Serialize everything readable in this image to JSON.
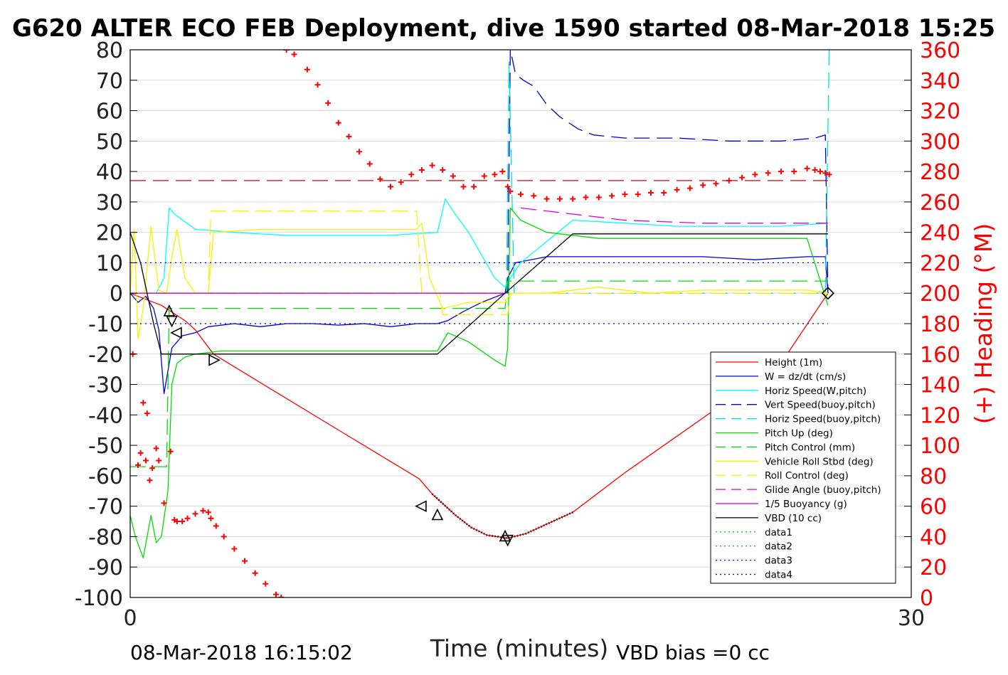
{
  "chart_data": {
    "type": "line",
    "title": "G620 ALTER ECO FEB Deployment, dive 1590 started 08-Mar-2018 15:25",
    "xlabel": "Time (minutes)",
    "ylabel_right": "(+) Heading (°M)",
    "xlim": [
      0,
      30
    ],
    "ylim": [
      -100,
      80
    ],
    "ylim_right": [
      0,
      360
    ],
    "x_ticks": [
      0,
      30
    ],
    "y_ticks": [
      80,
      70,
      60,
      50,
      40,
      30,
      20,
      10,
      0,
      -10,
      -20,
      -30,
      -40,
      -50,
      -60,
      -70,
      -80,
      -90,
      -100
    ],
    "y_ticks_right": [
      360,
      340,
      320,
      300,
      280,
      260,
      240,
      220,
      200,
      180,
      160,
      140,
      120,
      100,
      80,
      60,
      40,
      20,
      0
    ],
    "footer_left": "08-Mar-2018 16:15:02",
    "footer_right": "VBD bias =0 cc",
    "legend_position": "lower-right",
    "grid": "horizontal",
    "series": [
      {
        "name": "Height (1m)",
        "style": "solid",
        "color": "#ff0000",
        "x": [
          0,
          1.2,
          2.1,
          2.5,
          3.2,
          5.5,
          8.2,
          11.1,
          11.6,
          12.5,
          13.1,
          13.7,
          14.5,
          15.2,
          17,
          19,
          21,
          23,
          25,
          26.8
        ],
        "y": [
          0,
          -4,
          -9,
          -12,
          -20,
          -32,
          -46,
          -61,
          -66,
          -73,
          -77,
          -79.5,
          -80.5,
          -79,
          -72,
          -59,
          -47,
          -35,
          -23,
          0
        ]
      },
      {
        "name": "W = dz/dt (cm/s)",
        "style": "solid",
        "color": "#0000cc",
        "x": [
          0,
          0.3,
          0.6,
          0.9,
          1.1,
          1.3,
          1.6,
          2,
          2.5,
          3,
          4,
          5,
          6,
          7,
          8,
          9,
          10,
          11,
          11.8,
          12.2,
          12.8,
          13.5,
          14.4,
          14.5,
          14.8,
          16,
          18,
          20,
          22,
          24,
          26,
          26.7,
          26.8
        ],
        "y": [
          0,
          -3,
          -1,
          -5,
          -12,
          -33,
          -18,
          -14,
          -13,
          -11,
          -10,
          -11,
          -10,
          -10,
          -10.5,
          -10,
          -11,
          -10,
          -10,
          -9,
          -6,
          -3,
          0,
          5,
          10,
          12,
          12,
          12,
          12,
          11,
          12,
          12,
          0
        ]
      },
      {
        "name": "Horiz Speed(W,pitch)",
        "style": "solid",
        "color": "#00ffff",
        "x": [
          0,
          0.5,
          1,
          1.3,
          1.5,
          1.7,
          2.5,
          4,
          6,
          8,
          10,
          11.8,
          12.1,
          12.4,
          13,
          14,
          14.4,
          14.6,
          15,
          17,
          19,
          21,
          23,
          25,
          26.8
        ],
        "y": [
          0,
          0,
          0,
          5,
          28,
          26,
          21,
          20,
          19,
          19,
          19,
          20,
          31,
          27,
          20,
          5,
          2,
          5,
          10,
          24,
          23,
          22,
          22,
          22,
          23
        ]
      },
      {
        "name": "Vert Speed(buoy,pitch)",
        "style": "dashed",
        "color": "#0000cc",
        "x": [
          14.5,
          14.6,
          14.8,
          15.1,
          15.5,
          16,
          16.5,
          17.2,
          17.8,
          19,
          21,
          23,
          25,
          26.3,
          26.7,
          26.8
        ],
        "y": [
          0,
          80,
          72,
          70,
          68,
          62,
          58,
          54,
          52,
          51,
          51,
          50,
          50,
          51,
          52,
          0
        ]
      },
      {
        "name": "Horiz Speed(buoy,pitch)",
        "style": "dashed",
        "color": "#00dddd",
        "x": [
          14.45,
          14.55,
          14.75,
          26.7,
          26.85
        ],
        "y": [
          0,
          76,
          0,
          0,
          80
        ]
      },
      {
        "name": "Pitch Up (deg)",
        "style": "solid",
        "color": "#00dd00",
        "x": [
          0,
          0.2,
          0.5,
          0.8,
          1,
          1.2,
          1.45,
          1.6,
          1.8,
          2.1,
          2.5,
          3.5,
          5,
          7,
          9,
          11,
          11.8,
          12.2,
          13,
          14,
          14.4,
          14.5,
          14.6,
          15,
          16,
          18,
          20,
          22,
          24,
          26,
          26.8
        ],
        "y": [
          -73,
          -80,
          -87,
          -73,
          -82,
          -80,
          -65,
          -30,
          -23,
          -21,
          -20,
          -19,
          -19,
          -19,
          -19,
          -19,
          -19,
          -13,
          -16,
          -22,
          -24,
          -18,
          28,
          24,
          20,
          18,
          18,
          18,
          18,
          18,
          -4
        ]
      },
      {
        "name": "Pitch Control (mm)",
        "style": "dashed",
        "color": "#00dd00",
        "x": [
          0,
          1.4,
          1.5,
          14.4,
          14.5,
          26.8
        ],
        "y": [
          -57,
          -57,
          -5,
          -5,
          4,
          4
        ]
      },
      {
        "name": "Vehicle Roll Stbd (deg)",
        "style": "solid",
        "color": "#ffee00",
        "x": [
          0,
          0.15,
          0.3,
          0.5,
          0.8,
          1.1,
          1.4,
          1.6,
          1.8,
          2.1,
          2.5,
          3,
          3.2,
          5,
          7,
          9,
          11,
          11.2,
          11.5,
          12,
          13,
          14.4,
          14.6,
          16,
          18,
          20,
          22,
          24,
          26,
          26.8
        ],
        "y": [
          0,
          21,
          -15,
          -5,
          22,
          1,
          0,
          12,
          21,
          5,
          0,
          0,
          20,
          21,
          21,
          21,
          21,
          23,
          5,
          -5,
          -3,
          -3,
          0,
          0,
          2,
          0,
          1,
          1,
          1,
          0
        ]
      },
      {
        "name": "Roll Control (deg)",
        "style": "dashed",
        "color": "#ffee00",
        "x": [
          0,
          3,
          3.1,
          11,
          11.2,
          11.9,
          12,
          14.5,
          14.6,
          26.8
        ],
        "y": [
          0,
          0,
          27,
          27,
          0,
          0,
          -7,
          -7,
          0,
          0
        ]
      },
      {
        "name": "Glide Angle (buoy,pitch)",
        "style": "dashed",
        "color": "#dd00dd",
        "x": [
          15,
          17,
          19,
          22,
          25,
          26.8
        ],
        "y": [
          28,
          26,
          24,
          23,
          23,
          23
        ]
      },
      {
        "name": "1/5 Buoyancy (g)",
        "style": "solid",
        "color": "#cc00cc",
        "x": [
          0,
          14.4
        ],
        "y": [
          0,
          0
        ]
      },
      {
        "name": "VBD (10 cc)",
        "style": "solid",
        "color": "#000000",
        "x": [
          0,
          0.4,
          0.9,
          1.2,
          3,
          6,
          9,
          11.8,
          14.4,
          17,
          26.8
        ],
        "y": [
          20,
          10,
          -10,
          -20,
          -20,
          -20,
          -20,
          -20,
          0,
          19.5,
          19.5
        ]
      },
      {
        "name": "data1",
        "style": "dotted",
        "color": "#00dd00",
        "x": [],
        "y": []
      },
      {
        "name": "data2",
        "style": "dotted",
        "color": "#00dd00",
        "x": [],
        "y": []
      },
      {
        "name": "data3",
        "style": "dotted",
        "color": "#0000cc",
        "x": [
          0,
          26.8
        ],
        "y": [
          10,
          10
        ]
      },
      {
        "name": "data4",
        "style": "dotted",
        "color": "#0000cc",
        "x": [
          0,
          26.8
        ],
        "y": [
          -10,
          -10
        ]
      }
    ],
    "reference_lines": [
      {
        "style": "dashed",
        "color": "#dd0000",
        "x": [
          0,
          26.8
        ],
        "y": [
          37,
          37
        ]
      },
      {
        "style": "dashed",
        "color": "#9933ff",
        "x": [
          0,
          14.5
        ],
        "y": [
          0,
          0
        ]
      }
    ],
    "heading": {
      "color": "#ff0000",
      "axis": "right",
      "x": [
        0.1,
        0.3,
        0.4,
        0.5,
        0.6,
        0.65,
        0.75,
        0.85,
        1.0,
        1.1,
        1.3,
        1.55,
        1.7,
        1.8,
        2.0,
        2.2,
        2.5,
        2.8,
        3.0,
        3.1,
        3.3,
        3.6,
        4.0,
        4.4,
        4.8,
        5.2,
        5.6,
        5.8,
        6.0,
        6.3,
        6.8,
        7.2,
        7.6,
        8.0,
        8.4,
        8.8,
        9.2,
        9.6,
        10.0,
        10.4,
        10.8,
        11.2,
        11.6,
        12.0,
        12.4,
        12.8,
        13.2,
        13.6,
        14.0,
        14.3,
        14.5,
        14.6,
        15.0,
        15.5,
        16.0,
        16.5,
        17.0,
        17.5,
        18.0,
        18.5,
        19.0,
        19.5,
        20.0,
        20.5,
        21.0,
        21.5,
        22.0,
        22.5,
        23.0,
        23.5,
        24.0,
        24.5,
        25.0,
        25.5,
        26.0,
        26.3,
        26.5,
        26.7,
        26.85
      ],
      "y": [
        160,
        87,
        95,
        128,
        90,
        121,
        77,
        85,
        98,
        90,
        62,
        96,
        51,
        50,
        50,
        52,
        55,
        57,
        56,
        52,
        47,
        40,
        32,
        24,
        16,
        9,
        2,
        0,
        360,
        357,
        347,
        337,
        325,
        312,
        303,
        293,
        285,
        275,
        270,
        273,
        278,
        281,
        284,
        281,
        277,
        270,
        270,
        277,
        278,
        280,
        270,
        267,
        265,
        264,
        262,
        262,
        262,
        263,
        263,
        264,
        265,
        265,
        266,
        266,
        268,
        269,
        271,
        272,
        274,
        276,
        278,
        279,
        280,
        280,
        282,
        281,
        280,
        279,
        278
      ]
    },
    "markers": [
      {
        "shape": "triangle-up",
        "x": [
          1.5,
          11.8,
          14.4
        ],
        "y": [
          -6,
          -73,
          -80
        ]
      },
      {
        "shape": "triangle-down",
        "x": [
          1.6,
          14.5
        ],
        "y": [
          -9,
          -81
        ]
      },
      {
        "shape": "triangle-left",
        "x": [
          1.8,
          11.2
        ],
        "y": [
          -13,
          -70
        ]
      },
      {
        "shape": "triangle-right",
        "x": [
          3.2
        ],
        "y": [
          -22
        ]
      },
      {
        "shape": "diamond",
        "x": [
          26.8
        ],
        "y": [
          0
        ]
      }
    ]
  }
}
